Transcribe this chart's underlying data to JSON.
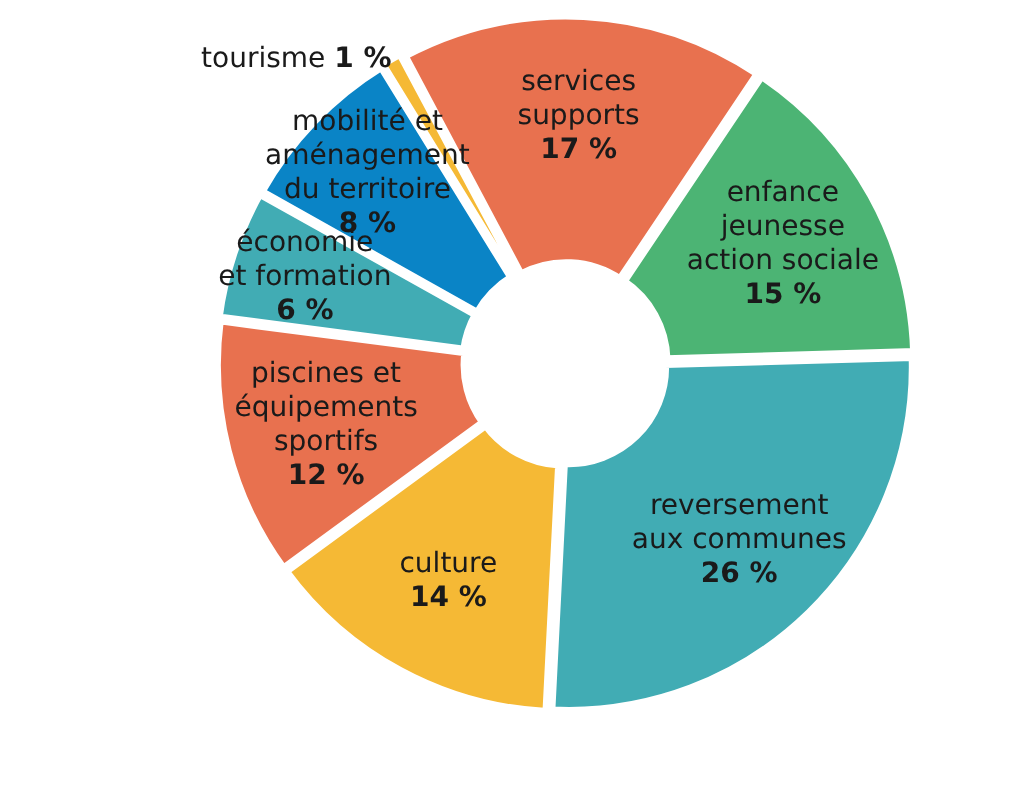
{
  "chart_data": {
    "type": "donut",
    "categories": [
      "services\nsupports",
      "enfance\njeunesse\naction sociale",
      "reversement\naux communes",
      "culture",
      "piscines et\néquipements\nsportifs",
      "économie\net formation",
      "mobilité et\naménagement\ndu territoire",
      "tourisme"
    ],
    "values": [
      17,
      15,
      26,
      14,
      12,
      6,
      8,
      1
    ],
    "value_labels": [
      "17 %",
      "15 %",
      "26 %",
      "14 %",
      "12 %",
      "6 %",
      "8 %",
      "1 %"
    ],
    "colors": [
      "#e8714f",
      "#4cb474",
      "#41acb4",
      "#f5b935",
      "#e8714f",
      "#41acb4",
      "#0a84c6",
      "#f5b935"
    ],
    "legend": false
  }
}
